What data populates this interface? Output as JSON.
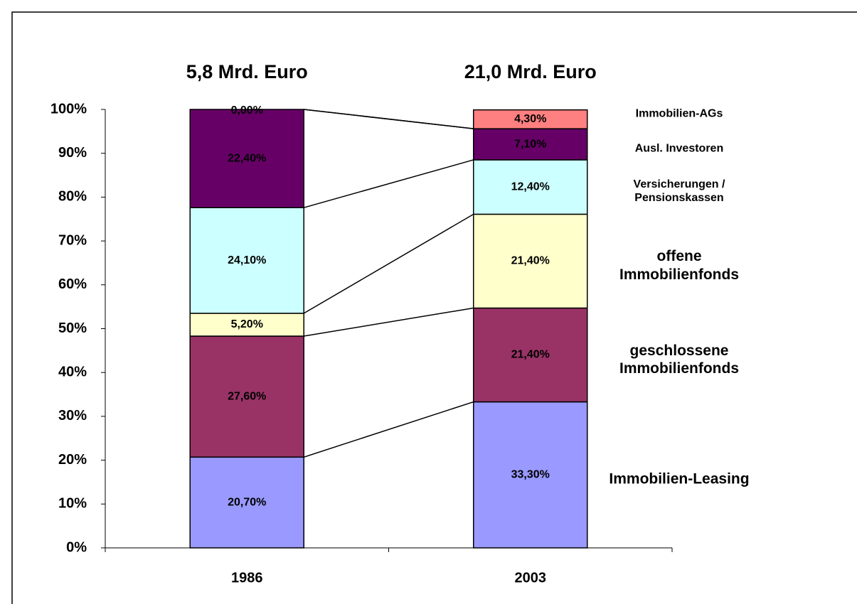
{
  "chart_data": {
    "type": "stacked_bar",
    "categories": [
      "1986",
      "2003"
    ],
    "annotations": [
      "5,8 Mrd. Euro",
      "21,0 Mrd. Euro"
    ],
    "series": [
      {
        "name": "Immobilien-Leasing",
        "color": "#9999ff",
        "values": [
          20.7,
          33.3
        ],
        "value_labels": [
          "20,70%",
          "33,30%"
        ]
      },
      {
        "name": "geschlossene Immobilienfonds",
        "color": "#993366",
        "values": [
          27.6,
          21.4
        ],
        "value_labels": [
          "27,60%",
          "21,40%"
        ]
      },
      {
        "name": "offene Immobilienfonds",
        "color": "#ffffcc",
        "values": [
          5.2,
          21.4
        ],
        "value_labels": [
          "5,20%",
          "21,40%"
        ]
      },
      {
        "name": "Versicherungen / Pensionskassen",
        "color": "#ccffff",
        "values": [
          24.1,
          12.4
        ],
        "value_labels": [
          "24,10%",
          "12,40%"
        ]
      },
      {
        "name": "Ausl. Investoren",
        "color": "#660066",
        "values": [
          22.4,
          7.1
        ],
        "value_labels": [
          "22,40%",
          "7,10%"
        ]
      },
      {
        "name": "Immobilien-AGs",
        "color": "#ff8080",
        "values": [
          0,
          4.3
        ],
        "value_labels": [
          "0,00%",
          "4,30%"
        ]
      }
    ],
    "ylim": [
      0,
      100
    ],
    "yticks": [
      {
        "value": 0,
        "label": "0%"
      },
      {
        "value": 10,
        "label": "10%"
      },
      {
        "value": 20,
        "label": "20%"
      },
      {
        "value": 30,
        "label": "30%"
      },
      {
        "value": 40,
        "label": "40%"
      },
      {
        "value": 50,
        "label": "50%"
      },
      {
        "value": 60,
        "label": "60%"
      },
      {
        "value": 70,
        "label": "70%"
      },
      {
        "value": 80,
        "label": "80%"
      },
      {
        "value": 90,
        "label": "90%"
      },
      {
        "value": 100,
        "label": "100%"
      }
    ],
    "grid": false
  }
}
